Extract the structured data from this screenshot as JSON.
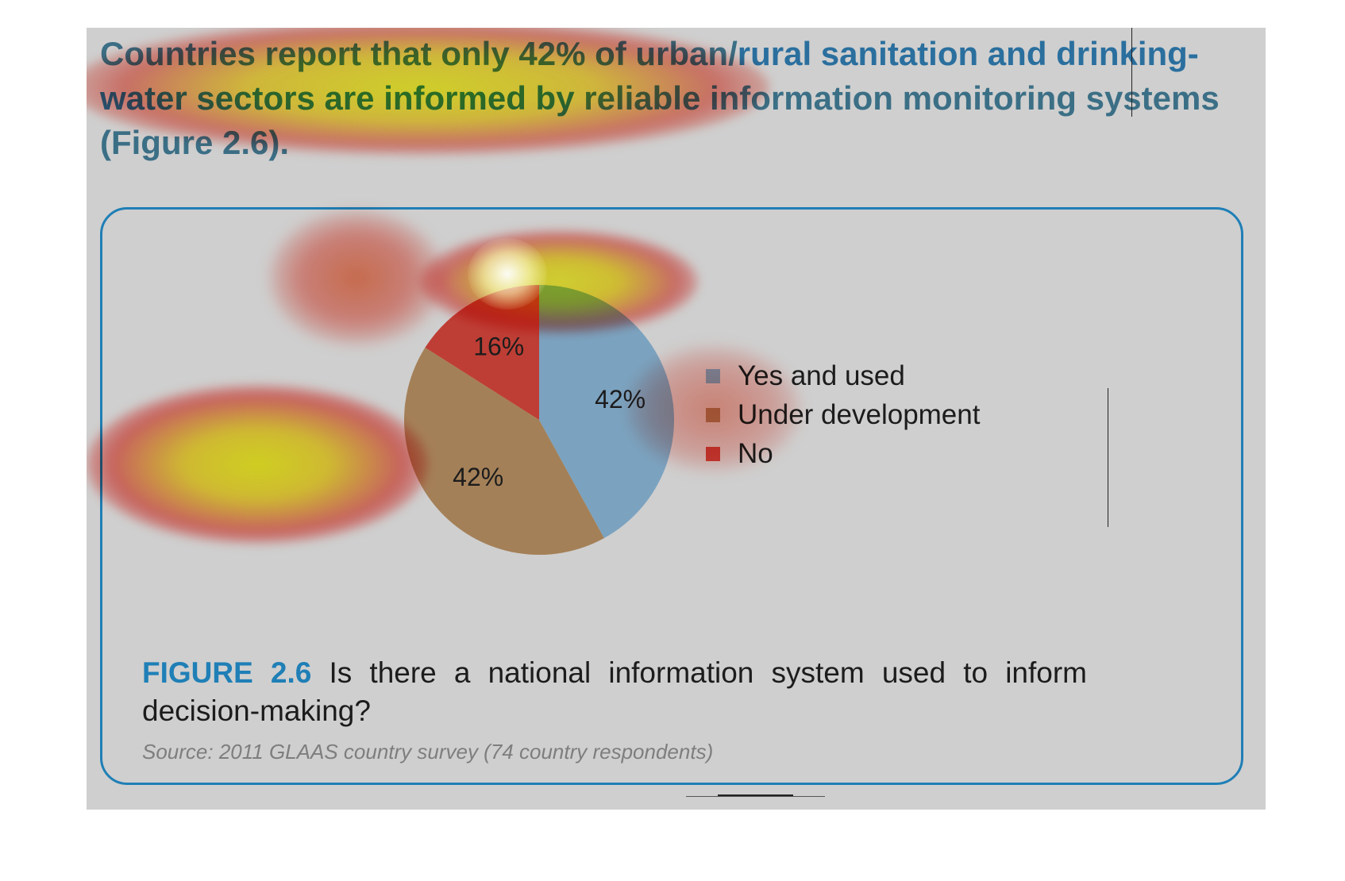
{
  "headline": {
    "part1": "Countries report that only 42% of urban/",
    "part2": "rural sanitation and drinking-water sectors are informed by ",
    "part3": "reliable information monitoring systems (Figure 2.6)."
  },
  "figure": {
    "number": "FIGURE 2.6",
    "question": " Is there a national information system used to inform decision-making?",
    "source": "Source: 2011 GLAAS country survey (74 country respondents)"
  },
  "colors": {
    "yes": "#7ba3c0",
    "under": "#a48058",
    "no": "#be3e35",
    "accent": "#1f7fb6"
  },
  "chart_data": {
    "type": "pie",
    "title": "",
    "slices": [
      {
        "label": "Yes and used",
        "value": 42,
        "display": "42%",
        "color": "#7ba3c0"
      },
      {
        "label": "Under development",
        "value": 42,
        "display": "42%",
        "color": "#a48058"
      },
      {
        "label": "No",
        "value": 16,
        "display": "16%",
        "color": "#be3e35"
      }
    ],
    "legend_position": "right"
  }
}
